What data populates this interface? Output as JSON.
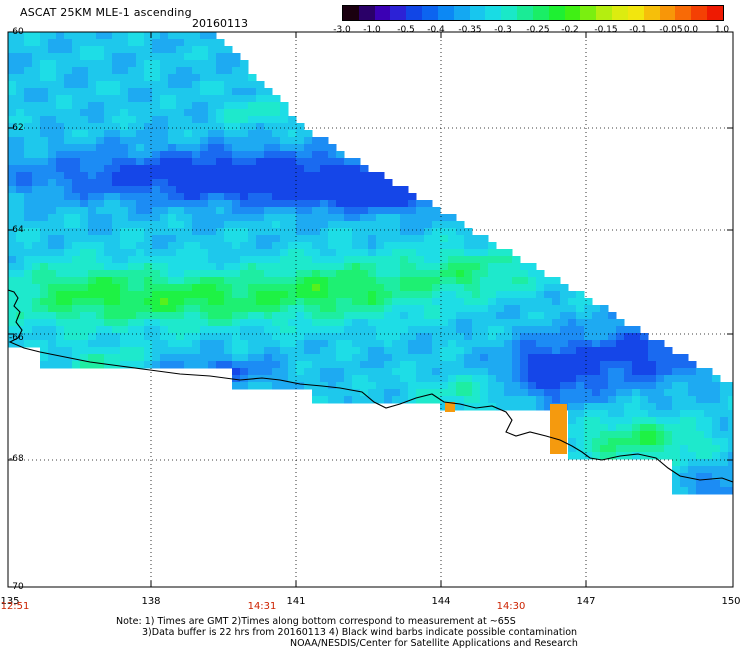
{
  "title": "ASCAT 25KM MLE-1 ascending",
  "date": "20160113",
  "colorbar": {
    "colors": [
      "#1a0010",
      "#2a0068",
      "#3b00b4",
      "#2c22d6",
      "#1146e6",
      "#0c64f0",
      "#0c88f4",
      "#14a8f2",
      "#18c6ee",
      "#19dce4",
      "#1ae8c8",
      "#1aeb96",
      "#1aee66",
      "#1ef032",
      "#40f014",
      "#7aef10",
      "#b4ee10",
      "#dcec10",
      "#f2e60e",
      "#f6bf0a",
      "#f89608",
      "#f86a06",
      "#f44004",
      "#ee1a02"
    ],
    "labels": [
      "-3.0",
      "-1.0",
      "-0.5",
      "-0.4",
      "-0.35",
      "-0.3",
      "-0.25",
      "-0.2",
      "-0.15",
      "-0.1",
      "-0.05",
      "0.0",
      "1.0"
    ]
  },
  "map": {
    "lat_labels": [
      "-60",
      "-62",
      "-64",
      "-66",
      "-68",
      "-70"
    ],
    "lon_labels": [
      "135",
      "138",
      "141",
      "144",
      "147",
      "150"
    ],
    "time_labels": [
      "12:51",
      "14:31",
      "14:30"
    ],
    "time_color": "#cc2200"
  },
  "notes": [
    "Note: 1) Times are GMT 2)Times along bottom correspond to measurement at ~65S",
    "3)Data buffer is 22 hrs from 20160113 4) Black wind barbs indicate possible contamination",
    "NOAA/NESDIS/Center for Satellite Applications and Research"
  ]
}
